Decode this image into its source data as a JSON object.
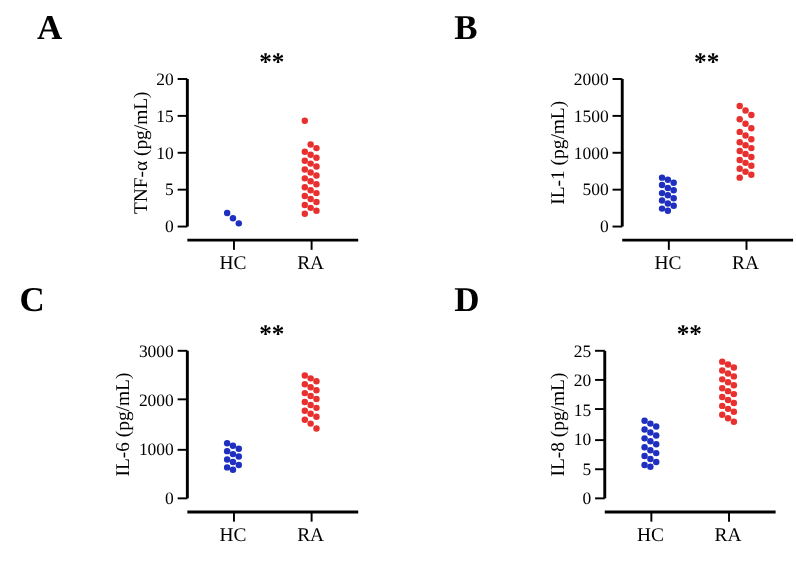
{
  "chart_data": [
    {
      "type": "scatter",
      "title": "A",
      "ylabel": "TNF-α (pg/mL)",
      "categories": [
        "HC",
        "RA"
      ],
      "ylim": [
        0,
        20
      ],
      "yticks": [
        0,
        5,
        10,
        15,
        20
      ],
      "grid": false,
      "marker": "circle",
      "annotations": [
        "**"
      ],
      "series": [
        {
          "color": "#1f2fc0",
          "x": [
            "HC",
            "HC",
            "HC"
          ],
          "values": [
            1.7,
            1.0,
            0.3
          ]
        },
        {
          "color": "#e8312f",
          "x": [
            "RA",
            "RA",
            "RA",
            "RA",
            "RA",
            "RA",
            "RA",
            "RA",
            "RA",
            "RA",
            "RA",
            "RA",
            "RA",
            "RA",
            "RA",
            "RA",
            "RA",
            "RA",
            "RA",
            "RA",
            "RA",
            "RA",
            "RA",
            "RA",
            "RA"
          ],
          "values": [
            14.2,
            11.0,
            10.5,
            10.0,
            9.6,
            9.2,
            8.8,
            8.4,
            8.0,
            7.6,
            7.2,
            6.8,
            6.4,
            6.0,
            5.6,
            5.2,
            4.8,
            4.4,
            4.0,
            3.6,
            3.2,
            2.8,
            2.4,
            2.0,
            1.6
          ]
        }
      ]
    },
    {
      "type": "scatter",
      "title": "B",
      "ylabel": "IL-1 (pg/mL)",
      "categories": [
        "HC",
        "RA"
      ],
      "ylim": [
        0,
        2000
      ],
      "yticks": [
        0,
        500,
        1000,
        1500,
        2000
      ],
      "grid": false,
      "marker": "circle",
      "annotations": [
        "**"
      ],
      "series": [
        {
          "color": "#1f2fc0",
          "x": [
            "HC",
            "HC",
            "HC",
            "HC",
            "HC",
            "HC",
            "HC",
            "HC",
            "HC",
            "HC",
            "HC",
            "HC",
            "HC",
            "HC"
          ],
          "values": [
            650,
            620,
            580,
            550,
            510,
            480,
            440,
            410,
            370,
            340,
            300,
            270,
            230,
            200
          ]
        },
        {
          "color": "#e8312f",
          "x": [
            "RA",
            "RA",
            "RA",
            "RA",
            "RA",
            "RA",
            "RA",
            "RA",
            "RA",
            "RA",
            "RA",
            "RA",
            "RA",
            "RA",
            "RA",
            "RA",
            "RA",
            "RA",
            "RA",
            "RA",
            "RA",
            "RA"
          ],
          "values": [
            1620,
            1560,
            1500,
            1440,
            1380,
            1320,
            1270,
            1220,
            1170,
            1130,
            1090,
            1050,
            1010,
            970,
            930,
            890,
            850,
            810,
            770,
            730,
            690,
            650
          ]
        }
      ]
    },
    {
      "type": "scatter",
      "title": "C",
      "ylabel": "IL-6 (pg/mL)",
      "categories": [
        "HC",
        "RA"
      ],
      "ylim": [
        0,
        3000
      ],
      "yticks": [
        0,
        1000,
        2000,
        3000
      ],
      "grid": false,
      "marker": "circle",
      "annotations": [
        "**"
      ],
      "series": [
        {
          "color": "#1f2fc0",
          "x": [
            "HC",
            "HC",
            "HC",
            "HC",
            "HC",
            "HC",
            "HC",
            "HC",
            "HC",
            "HC",
            "HC"
          ],
          "values": [
            1100,
            1050,
            990,
            940,
            880,
            830,
            770,
            720,
            660,
            610,
            560
          ]
        },
        {
          "color": "#e8312f",
          "x": [
            "RA",
            "RA",
            "RA",
            "RA",
            "RA",
            "RA",
            "RA",
            "RA",
            "RA",
            "RA",
            "RA",
            "RA",
            "RA",
            "RA",
            "RA",
            "RA",
            "RA",
            "RA"
          ],
          "values": [
            2480,
            2420,
            2360,
            2300,
            2240,
            2180,
            2120,
            2060,
            2000,
            1940,
            1880,
            1820,
            1760,
            1700,
            1640,
            1580,
            1500,
            1400
          ]
        }
      ]
    },
    {
      "type": "scatter",
      "title": "D",
      "ylabel": "IL-8 (pg/mL)",
      "categories": [
        "HC",
        "RA"
      ],
      "ylim": [
        0,
        25
      ],
      "yticks": [
        0,
        5,
        10,
        15,
        20,
        25
      ],
      "grid": false,
      "marker": "circle",
      "annotations": [
        "**"
      ],
      "series": [
        {
          "color": "#1f2fc0",
          "x": [
            "HC",
            "HC",
            "HC",
            "HC",
            "HC",
            "HC",
            "HC",
            "HC",
            "HC",
            "HC",
            "HC",
            "HC",
            "HC",
            "HC",
            "HC",
            "HC",
            "HC"
          ],
          "values": [
            13.0,
            12.5,
            12.0,
            11.5,
            11.0,
            10.5,
            10.0,
            9.5,
            9.0,
            8.5,
            8.0,
            7.5,
            7.0,
            6.5,
            6.0,
            5.5,
            5.2
          ]
        },
        {
          "color": "#e8312f",
          "x": [
            "RA",
            "RA",
            "RA",
            "RA",
            "RA",
            "RA",
            "RA",
            "RA",
            "RA",
            "RA",
            "RA",
            "RA",
            "RA",
            "RA",
            "RA",
            "RA",
            "RA",
            "RA",
            "RA",
            "RA",
            "RA"
          ],
          "values": [
            23.0,
            22.5,
            22.0,
            21.5,
            21.0,
            20.5,
            20.0,
            19.5,
            19.0,
            18.5,
            18.0,
            17.5,
            17.0,
            16.5,
            16.0,
            15.5,
            15.0,
            14.5,
            14.0,
            13.4,
            12.8
          ]
        }
      ]
    }
  ]
}
